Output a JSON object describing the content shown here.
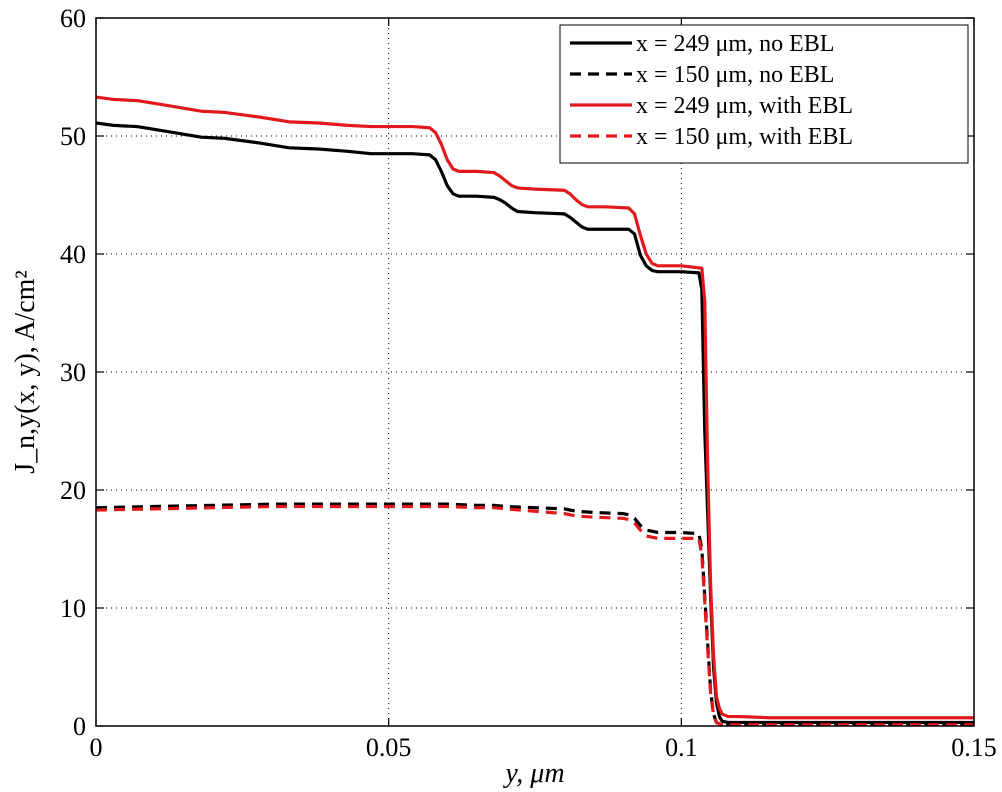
{
  "chart_data": {
    "type": "line",
    "xlabel": "y, μm",
    "ylabel": "J_n,y(x, y), A/cm²",
    "xlim": [
      0,
      0.15
    ],
    "ylim": [
      0,
      60
    ],
    "xticks": [
      0,
      0.05,
      0.1,
      0.15
    ],
    "xtick_labels": [
      "0",
      "0.05",
      "0.1",
      "0.15"
    ],
    "yticks": [
      0,
      10,
      20,
      30,
      40,
      50,
      60
    ],
    "ytick_labels": [
      "0",
      "10",
      "20",
      "30",
      "40",
      "50",
      "60"
    ],
    "grid": true,
    "legend_position": "top-right",
    "series": [
      {
        "name": "x = 249 μm, no EBL",
        "color": "#000000",
        "dash": "solid",
        "x": [
          0,
          0.003,
          0.007,
          0.012,
          0.018,
          0.022,
          0.028,
          0.033,
          0.038,
          0.043,
          0.047,
          0.05,
          0.054,
          0.057,
          0.058,
          0.059,
          0.06,
          0.061,
          0.062,
          0.065,
          0.068,
          0.069,
          0.07,
          0.071,
          0.072,
          0.075,
          0.08,
          0.081,
          0.082,
          0.083,
          0.084,
          0.087,
          0.091,
          0.092,
          0.093,
          0.094,
          0.095,
          0.096,
          0.1,
          0.103,
          0.1035,
          0.104,
          0.105,
          0.1055,
          0.106,
          0.1065,
          0.107,
          0.108,
          0.11,
          0.12,
          0.13,
          0.14,
          0.15
        ],
        "y": [
          51.1,
          50.9,
          50.8,
          50.4,
          49.9,
          49.8,
          49.4,
          49.0,
          48.9,
          48.7,
          48.5,
          48.5,
          48.5,
          48.4,
          48.0,
          47.0,
          45.8,
          45.1,
          44.9,
          44.9,
          44.8,
          44.6,
          44.3,
          43.9,
          43.6,
          43.5,
          43.4,
          43.1,
          42.7,
          42.3,
          42.1,
          42.1,
          42.1,
          41.7,
          39.9,
          39.0,
          38.6,
          38.5,
          38.5,
          38.4,
          37.0,
          25.0,
          11.0,
          5.0,
          2.0,
          0.8,
          0.4,
          0.3,
          0.3,
          0.3,
          0.3,
          0.3,
          0.3
        ]
      },
      {
        "name": "x = 150 μm, no EBL",
        "color": "#000000",
        "dash": "dashed",
        "x": [
          0,
          0.01,
          0.02,
          0.03,
          0.04,
          0.05,
          0.055,
          0.06,
          0.065,
          0.068,
          0.07,
          0.075,
          0.08,
          0.082,
          0.085,
          0.09,
          0.091,
          0.092,
          0.093,
          0.094,
          0.096,
          0.1,
          0.103,
          0.1035,
          0.104,
          0.1045,
          0.105,
          0.1055,
          0.106,
          0.107,
          0.11,
          0.12,
          0.13,
          0.14,
          0.15
        ],
        "y": [
          18.5,
          18.6,
          18.7,
          18.8,
          18.8,
          18.8,
          18.8,
          18.8,
          18.7,
          18.7,
          18.6,
          18.5,
          18.4,
          18.2,
          18.1,
          18.0,
          17.9,
          17.6,
          17.0,
          16.6,
          16.4,
          16.4,
          16.3,
          15.0,
          11.0,
          7.0,
          3.0,
          1.0,
          0.3,
          0.1,
          0.1,
          0.1,
          0.1,
          0.1,
          0.1
        ]
      },
      {
        "name": "x = 249 μm, with EBL",
        "color": "#e2191c",
        "dash": "solid",
        "x": [
          0,
          0.003,
          0.007,
          0.012,
          0.018,
          0.022,
          0.028,
          0.033,
          0.038,
          0.043,
          0.047,
          0.05,
          0.054,
          0.057,
          0.058,
          0.059,
          0.06,
          0.061,
          0.062,
          0.065,
          0.068,
          0.069,
          0.07,
          0.071,
          0.072,
          0.075,
          0.08,
          0.081,
          0.082,
          0.083,
          0.084,
          0.087,
          0.091,
          0.092,
          0.093,
          0.094,
          0.095,
          0.096,
          0.1,
          0.1035,
          0.104,
          0.1045,
          0.105,
          0.1055,
          0.106,
          0.1065,
          0.107,
          0.108,
          0.11,
          0.115,
          0.12,
          0.13,
          0.14,
          0.15
        ],
        "y": [
          53.3,
          53.1,
          53.0,
          52.6,
          52.1,
          52.0,
          51.6,
          51.2,
          51.1,
          50.9,
          50.8,
          50.8,
          50.8,
          50.7,
          50.3,
          49.3,
          48.0,
          47.2,
          47.0,
          47.0,
          46.9,
          46.6,
          46.2,
          45.8,
          45.6,
          45.5,
          45.4,
          45.1,
          44.6,
          44.2,
          44.0,
          44.0,
          43.9,
          43.4,
          41.6,
          40.0,
          39.2,
          39.0,
          39.0,
          38.8,
          36.0,
          22.0,
          12.0,
          6.0,
          2.5,
          1.5,
          1.0,
          0.8,
          0.8,
          0.7,
          0.7,
          0.7,
          0.7,
          0.7
        ]
      },
      {
        "name": "x = 150 μm, with EBL",
        "color": "#e2191c",
        "dash": "dashed",
        "x": [
          0,
          0.01,
          0.02,
          0.03,
          0.04,
          0.05,
          0.055,
          0.06,
          0.065,
          0.068,
          0.07,
          0.075,
          0.08,
          0.082,
          0.085,
          0.09,
          0.091,
          0.092,
          0.093,
          0.094,
          0.096,
          0.1,
          0.103,
          0.1035,
          0.104,
          0.1045,
          0.105,
          0.1055,
          0.106,
          0.107,
          0.11,
          0.12,
          0.13,
          0.14,
          0.15
        ],
        "y": [
          18.3,
          18.4,
          18.5,
          18.6,
          18.6,
          18.6,
          18.6,
          18.6,
          18.5,
          18.5,
          18.4,
          18.2,
          18.0,
          17.8,
          17.7,
          17.6,
          17.5,
          17.2,
          16.6,
          16.1,
          15.9,
          15.9,
          15.9,
          14.5,
          10.5,
          6.5,
          2.8,
          0.9,
          0.3,
          0.1,
          0.1,
          0.1,
          0.1,
          0.1,
          0.1
        ]
      }
    ]
  }
}
